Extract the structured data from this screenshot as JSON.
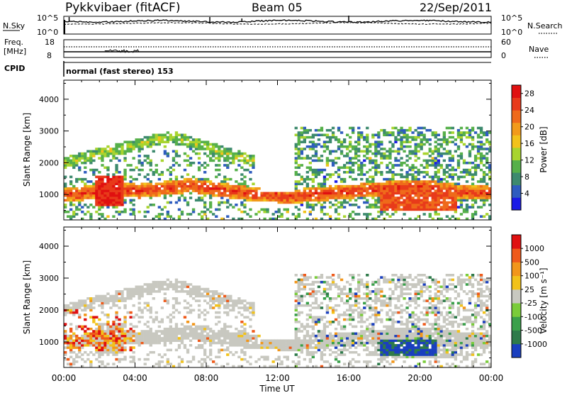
{
  "header": {
    "station": "Pykkvibaer (fitACF)",
    "beam": "Beam 05",
    "date": "22/Sep/2011"
  },
  "noise_panel": {
    "left_label": "N.Sky",
    "left_ticks": [
      "10^5",
      "10^0"
    ],
    "right_ticks": [
      "10^5",
      "10^0"
    ],
    "right_label": "N.Search"
  },
  "freq_panel": {
    "left_label_1": "Freq.",
    "left_label_2": "[MHz]",
    "left_ticks": [
      "18",
      "8"
    ],
    "right_ticks": [
      "60",
      "0"
    ],
    "right_label": "Nave"
  },
  "cpid": {
    "label": "CPID",
    "value": "normal (fast stereo) 153"
  },
  "x_axis": {
    "title": "Time UT",
    "tick_labels": [
      "00:00",
      "04:00",
      "08:00",
      "12:00",
      "16:00",
      "20:00",
      "00:00"
    ]
  },
  "chart_data": [
    {
      "type": "heatmap",
      "panel": "power",
      "ylabel": "Slant Range [km]",
      "yticks": [
        "1000",
        "2000",
        "3000",
        "4000"
      ],
      "ylim": [
        200,
        4600
      ],
      "xlim_hours": [
        0,
        24
      ],
      "colorbar": {
        "label": "Power [dB]",
        "ticks": [
          "4",
          "8",
          "12",
          "16",
          "20",
          "24",
          "28"
        ],
        "colors": [
          "#1a1ae6",
          "#2e5cbf",
          "#3d8a6e",
          "#56b04a",
          "#a8d42e",
          "#f2c21a",
          "#f29a1a",
          "#ef6a1a",
          "#e83a1a",
          "#e01010"
        ]
      }
    },
    {
      "type": "heatmap",
      "panel": "velocity",
      "ylabel": "Slant Range [km]",
      "yticks": [
        "1000",
        "2000",
        "3000",
        "4000"
      ],
      "ylim": [
        200,
        4600
      ],
      "xlim_hours": [
        0,
        24
      ],
      "colorbar": {
        "label": "Velocity [m s⁻¹]",
        "ticks": [
          "1000",
          "500",
          "100",
          "25",
          "-25",
          "-100",
          "-500",
          "-1000"
        ],
        "colors": [
          "#1a3fbf",
          "#2e7a4a",
          "#3aa04a",
          "#7acc3a",
          "#c8c8c0",
          "#f2c21a",
          "#f2961a",
          "#ef5a1a",
          "#e01010"
        ]
      }
    }
  ]
}
